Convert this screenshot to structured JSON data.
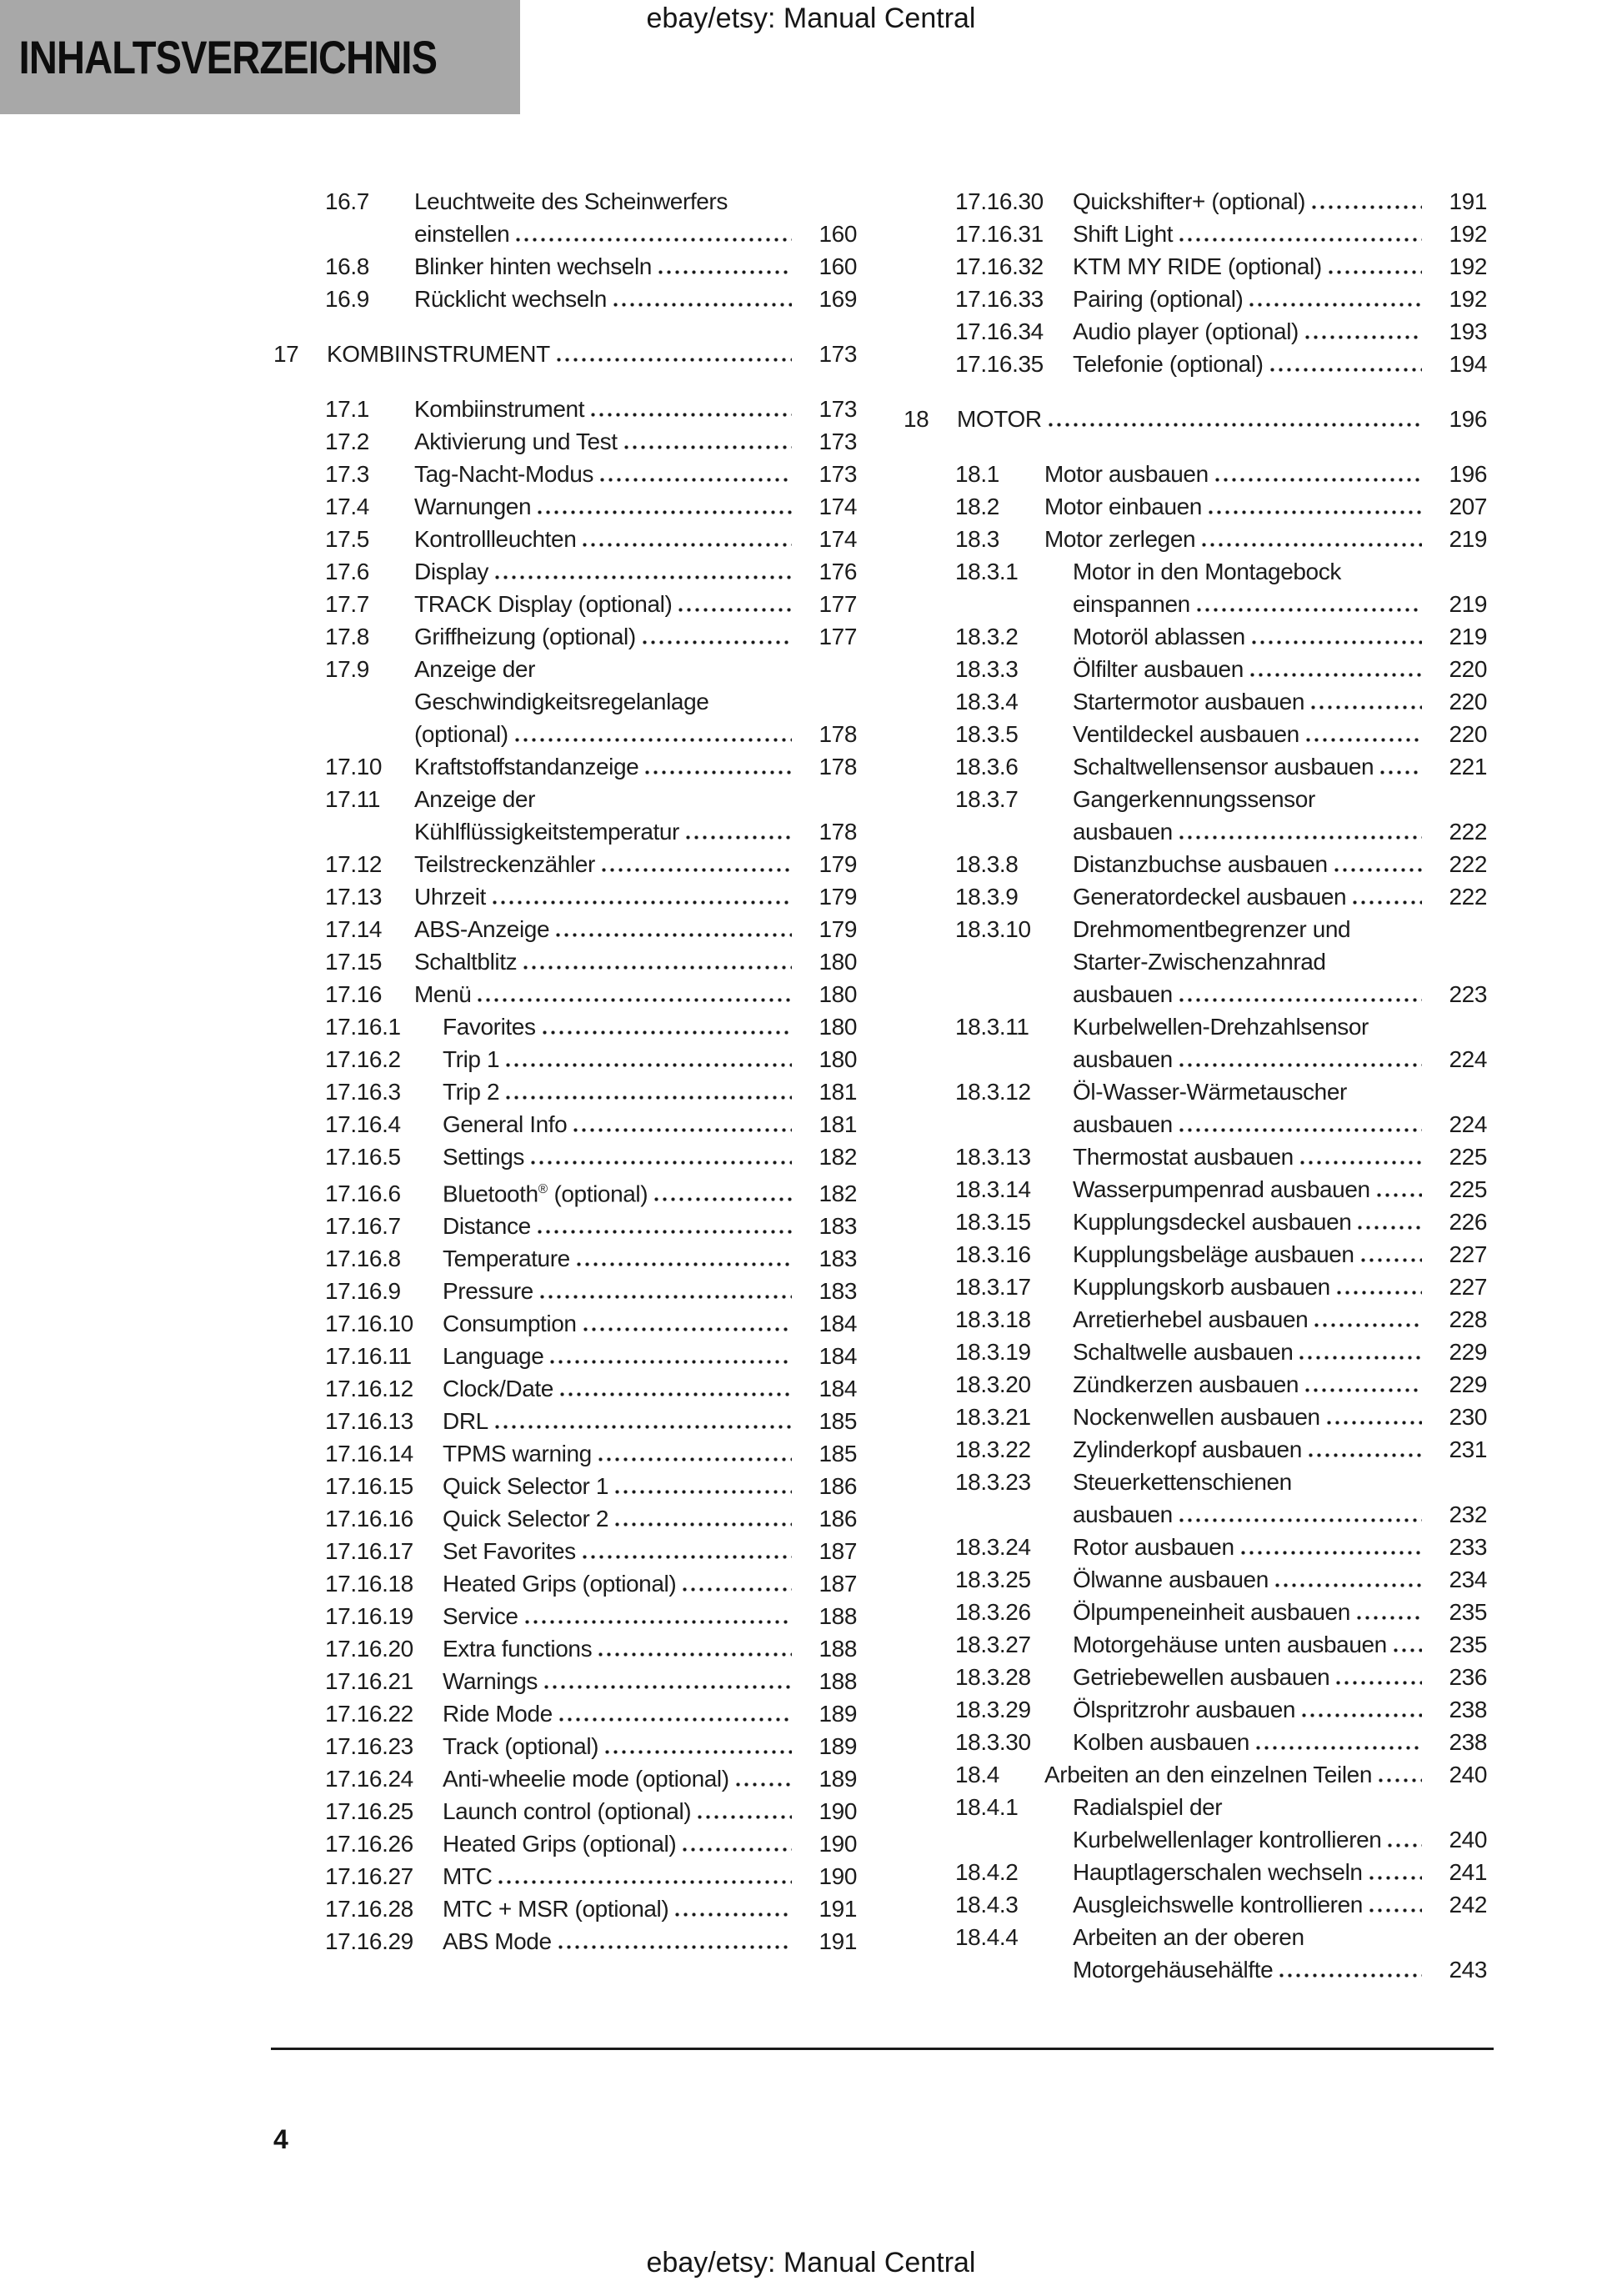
{
  "page": {
    "header_title": "ebay/etsy: Manual Central",
    "footer_title": "ebay/etsy: Manual Central",
    "toc_title": "INHALTSVERZEICHNIS",
    "page_number": "4"
  },
  "colors": {
    "title_box_bg": "#a8a8a8",
    "text": "#1c1c1c",
    "rule": "#1a1a1a"
  },
  "toc": {
    "left": [
      {
        "num": "16.7",
        "level": 2,
        "lines": [
          "Leuchtweite des Scheinwerfers",
          "einstellen"
        ],
        "page": "160"
      },
      {
        "num": "16.8",
        "level": 2,
        "lines": [
          "Blinker hinten wechseln"
        ],
        "page": "160"
      },
      {
        "num": "16.9",
        "level": 2,
        "lines": [
          "Rücklicht wechseln"
        ],
        "page": "169"
      },
      {
        "num": "17",
        "level": 1,
        "lines": [
          "KOMBIINSTRUMENT"
        ],
        "page": "173"
      },
      {
        "num": "17.1",
        "level": 2,
        "lines": [
          "Kombiinstrument"
        ],
        "page": "173"
      },
      {
        "num": "17.2",
        "level": 2,
        "lines": [
          "Aktivierung und Test"
        ],
        "page": "173"
      },
      {
        "num": "17.3",
        "level": 2,
        "lines": [
          "Tag-Nacht-Modus"
        ],
        "page": "173"
      },
      {
        "num": "17.4",
        "level": 2,
        "lines": [
          "Warnungen"
        ],
        "page": "174"
      },
      {
        "num": "17.5",
        "level": 2,
        "lines": [
          "Kontrollleuchten"
        ],
        "page": "174"
      },
      {
        "num": "17.6",
        "level": 2,
        "lines": [
          "Display"
        ],
        "page": "176"
      },
      {
        "num": "17.7",
        "level": 2,
        "lines": [
          "TRACK Display (optional)"
        ],
        "page": "177"
      },
      {
        "num": "17.8",
        "level": 2,
        "lines": [
          "Griffheizung (optional)"
        ],
        "page": "177"
      },
      {
        "num": "17.9",
        "level": 2,
        "lines": [
          "Anzeige der",
          "Geschwindigkeitsregelanlage",
          "(optional)"
        ],
        "page": "178"
      },
      {
        "num": "17.10",
        "level": 2,
        "lines": [
          "Kraftstoffstandanzeige"
        ],
        "page": "178"
      },
      {
        "num": "17.11",
        "level": 2,
        "lines": [
          "Anzeige der",
          "Kühlflüssigkeitstemperatur"
        ],
        "page": "178"
      },
      {
        "num": "17.12",
        "level": 2,
        "lines": [
          "Teilstreckenzähler"
        ],
        "page": "179"
      },
      {
        "num": "17.13",
        "level": 2,
        "lines": [
          "Uhrzeit"
        ],
        "page": "179"
      },
      {
        "num": "17.14",
        "level": 2,
        "lines": [
          "ABS-Anzeige"
        ],
        "page": "179"
      },
      {
        "num": "17.15",
        "level": 2,
        "lines": [
          "Schaltblitz"
        ],
        "page": "180"
      },
      {
        "num": "17.16",
        "level": 2,
        "lines": [
          "Menü"
        ],
        "page": "180"
      },
      {
        "num": "17.16.1",
        "level": 3,
        "lines": [
          "Favorites"
        ],
        "page": "180"
      },
      {
        "num": "17.16.2",
        "level": 3,
        "lines": [
          "Trip 1"
        ],
        "page": "180"
      },
      {
        "num": "17.16.3",
        "level": 3,
        "lines": [
          "Trip 2"
        ],
        "page": "181"
      },
      {
        "num": "17.16.4",
        "level": 3,
        "lines": [
          "General Info"
        ],
        "page": "181"
      },
      {
        "num": "17.16.5",
        "level": 3,
        "lines": [
          "Settings"
        ],
        "page": "182"
      },
      {
        "num": "17.16.6",
        "level": 3,
        "lines": [
          "Bluetooth® (optional)"
        ],
        "page": "182"
      },
      {
        "num": "17.16.7",
        "level": 3,
        "lines": [
          "Distance"
        ],
        "page": "183"
      },
      {
        "num": "17.16.8",
        "level": 3,
        "lines": [
          "Temperature"
        ],
        "page": "183"
      },
      {
        "num": "17.16.9",
        "level": 3,
        "lines": [
          "Pressure"
        ],
        "page": "183"
      },
      {
        "num": "17.16.10",
        "level": 3,
        "lines": [
          "Consumption"
        ],
        "page": "184"
      },
      {
        "num": "17.16.11",
        "level": 3,
        "lines": [
          "Language"
        ],
        "page": "184"
      },
      {
        "num": "17.16.12",
        "level": 3,
        "lines": [
          "Clock/Date"
        ],
        "page": "184"
      },
      {
        "num": "17.16.13",
        "level": 3,
        "lines": [
          "DRL"
        ],
        "page": "185"
      },
      {
        "num": "17.16.14",
        "level": 3,
        "lines": [
          "TPMS warning"
        ],
        "page": "185"
      },
      {
        "num": "17.16.15",
        "level": 3,
        "lines": [
          "Quick Selector 1"
        ],
        "page": "186"
      },
      {
        "num": "17.16.16",
        "level": 3,
        "lines": [
          "Quick Selector 2"
        ],
        "page": "186"
      },
      {
        "num": "17.16.17",
        "level": 3,
        "lines": [
          "Set Favorites"
        ],
        "page": "187"
      },
      {
        "num": "17.16.18",
        "level": 3,
        "lines": [
          "Heated Grips (optional)"
        ],
        "page": "187"
      },
      {
        "num": "17.16.19",
        "level": 3,
        "lines": [
          "Service"
        ],
        "page": "188"
      },
      {
        "num": "17.16.20",
        "level": 3,
        "lines": [
          "Extra functions"
        ],
        "page": "188"
      },
      {
        "num": "17.16.21",
        "level": 3,
        "lines": [
          "Warnings"
        ],
        "page": "188"
      },
      {
        "num": "17.16.22",
        "level": 3,
        "lines": [
          "Ride Mode"
        ],
        "page": "189"
      },
      {
        "num": "17.16.23",
        "level": 3,
        "lines": [
          "Track (optional)"
        ],
        "page": "189"
      },
      {
        "num": "17.16.24",
        "level": 3,
        "lines": [
          "Anti-wheelie mode (optional)"
        ],
        "page": "189"
      },
      {
        "num": "17.16.25",
        "level": 3,
        "lines": [
          "Launch control (optional)"
        ],
        "page": "190"
      },
      {
        "num": "17.16.26",
        "level": 3,
        "lines": [
          "Heated Grips (optional)"
        ],
        "page": "190"
      },
      {
        "num": "17.16.27",
        "level": 3,
        "lines": [
          "MTC"
        ],
        "page": "190"
      },
      {
        "num": "17.16.28",
        "level": 3,
        "lines": [
          "MTC + MSR (optional)"
        ],
        "page": "191"
      },
      {
        "num": "17.16.29",
        "level": 3,
        "lines": [
          "ABS Mode"
        ],
        "page": "191"
      }
    ],
    "right": [
      {
        "num": "17.16.30",
        "level": 3,
        "lines": [
          "Quickshifter+ (optional)"
        ],
        "page": "191"
      },
      {
        "num": "17.16.31",
        "level": 3,
        "lines": [
          "Shift Light"
        ],
        "page": "192"
      },
      {
        "num": "17.16.32",
        "level": 3,
        "lines": [
          "KTM MY RIDE (optional)"
        ],
        "page": "192"
      },
      {
        "num": "17.16.33",
        "level": 3,
        "lines": [
          "Pairing (optional)"
        ],
        "page": "192"
      },
      {
        "num": "17.16.34",
        "level": 3,
        "lines": [
          "Audio player (optional)"
        ],
        "page": "193"
      },
      {
        "num": "17.16.35",
        "level": 3,
        "lines": [
          "Telefonie (optional)"
        ],
        "page": "194"
      },
      {
        "num": "18",
        "level": 1,
        "lines": [
          "MOTOR"
        ],
        "page": "196"
      },
      {
        "num": "18.1",
        "level": 2,
        "lines": [
          "Motor ausbauen"
        ],
        "page": "196"
      },
      {
        "num": "18.2",
        "level": 2,
        "lines": [
          "Motor einbauen"
        ],
        "page": "207"
      },
      {
        "num": "18.3",
        "level": 2,
        "lines": [
          "Motor zerlegen"
        ],
        "page": "219"
      },
      {
        "num": "18.3.1",
        "level": 3,
        "lines": [
          "Motor in den Montagebock",
          "einspannen"
        ],
        "page": "219"
      },
      {
        "num": "18.3.2",
        "level": 3,
        "lines": [
          "Motoröl ablassen"
        ],
        "page": "219"
      },
      {
        "num": "18.3.3",
        "level": 3,
        "lines": [
          "Ölfilter ausbauen"
        ],
        "page": "220"
      },
      {
        "num": "18.3.4",
        "level": 3,
        "lines": [
          "Startermotor ausbauen"
        ],
        "page": "220"
      },
      {
        "num": "18.3.5",
        "level": 3,
        "lines": [
          "Ventildeckel ausbauen"
        ],
        "page": "220"
      },
      {
        "num": "18.3.6",
        "level": 3,
        "lines": [
          "Schaltwellensensor ausbauen"
        ],
        "page": "221"
      },
      {
        "num": "18.3.7",
        "level": 3,
        "lines": [
          "Gangerkennungssensor",
          "ausbauen"
        ],
        "page": "222"
      },
      {
        "num": "18.3.8",
        "level": 3,
        "lines": [
          "Distanzbuchse ausbauen"
        ],
        "page": "222"
      },
      {
        "num": "18.3.9",
        "level": 3,
        "lines": [
          "Generatordeckel ausbauen"
        ],
        "page": "222"
      },
      {
        "num": "18.3.10",
        "level": 3,
        "lines": [
          "Drehmomentbegrenzer und",
          "Starter-Zwischenzahnrad",
          "ausbauen"
        ],
        "page": "223"
      },
      {
        "num": "18.3.11",
        "level": 3,
        "lines": [
          "Kurbelwellen-Drehzahlsensor",
          "ausbauen"
        ],
        "page": "224"
      },
      {
        "num": "18.3.12",
        "level": 3,
        "lines": [
          "Öl-Wasser-Wärmetauscher",
          "ausbauen"
        ],
        "page": "224"
      },
      {
        "num": "18.3.13",
        "level": 3,
        "lines": [
          "Thermostat ausbauen"
        ],
        "page": "225"
      },
      {
        "num": "18.3.14",
        "level": 3,
        "lines": [
          "Wasserpumpenrad ausbauen"
        ],
        "page": "225"
      },
      {
        "num": "18.3.15",
        "level": 3,
        "lines": [
          "Kupplungsdeckel ausbauen"
        ],
        "page": "226"
      },
      {
        "num": "18.3.16",
        "level": 3,
        "lines": [
          "Kupplungsbeläge ausbauen"
        ],
        "page": "227"
      },
      {
        "num": "18.3.17",
        "level": 3,
        "lines": [
          "Kupplungskorb ausbauen"
        ],
        "page": "227"
      },
      {
        "num": "18.3.18",
        "level": 3,
        "lines": [
          "Arretierhebel ausbauen"
        ],
        "page": "228"
      },
      {
        "num": "18.3.19",
        "level": 3,
        "lines": [
          "Schaltwelle ausbauen"
        ],
        "page": "229"
      },
      {
        "num": "18.3.20",
        "level": 3,
        "lines": [
          "Zündkerzen ausbauen"
        ],
        "page": "229"
      },
      {
        "num": "18.3.21",
        "level": 3,
        "lines": [
          "Nockenwellen ausbauen"
        ],
        "page": "230"
      },
      {
        "num": "18.3.22",
        "level": 3,
        "lines": [
          "Zylinderkopf ausbauen"
        ],
        "page": "231"
      },
      {
        "num": "18.3.23",
        "level": 3,
        "lines": [
          "Steuerkettenschienen",
          "ausbauen"
        ],
        "page": "232"
      },
      {
        "num": "18.3.24",
        "level": 3,
        "lines": [
          "Rotor ausbauen"
        ],
        "page": "233"
      },
      {
        "num": "18.3.25",
        "level": 3,
        "lines": [
          "Ölwanne ausbauen"
        ],
        "page": "234"
      },
      {
        "num": "18.3.26",
        "level": 3,
        "lines": [
          "Ölpumpeneinheit ausbauen"
        ],
        "page": "235"
      },
      {
        "num": "18.3.27",
        "level": 3,
        "lines": [
          "Motorgehäuse unten ausbauen"
        ],
        "page": "235"
      },
      {
        "num": "18.3.28",
        "level": 3,
        "lines": [
          "Getriebewellen ausbauen"
        ],
        "page": "236"
      },
      {
        "num": "18.3.29",
        "level": 3,
        "lines": [
          "Ölspritzrohr ausbauen"
        ],
        "page": "238"
      },
      {
        "num": "18.3.30",
        "level": 3,
        "lines": [
          "Kolben ausbauen"
        ],
        "page": "238"
      },
      {
        "num": "18.4",
        "level": 2,
        "lines": [
          "Arbeiten an den einzelnen Teilen"
        ],
        "page": "240"
      },
      {
        "num": "18.4.1",
        "level": 3,
        "lines": [
          "Radialspiel der",
          "Kurbelwellenlager kontrollieren"
        ],
        "page": "240"
      },
      {
        "num": "18.4.2",
        "level": 3,
        "lines": [
          "Hauptlagerschalen wechseln"
        ],
        "page": "241"
      },
      {
        "num": "18.4.3",
        "level": 3,
        "lines": [
          "Ausgleichswelle kontrollieren"
        ],
        "page": "242"
      },
      {
        "num": "18.4.4",
        "level": 3,
        "lines": [
          "Arbeiten an der oberen",
          "Motorgehäusehälfte"
        ],
        "page": "243"
      }
    ]
  }
}
